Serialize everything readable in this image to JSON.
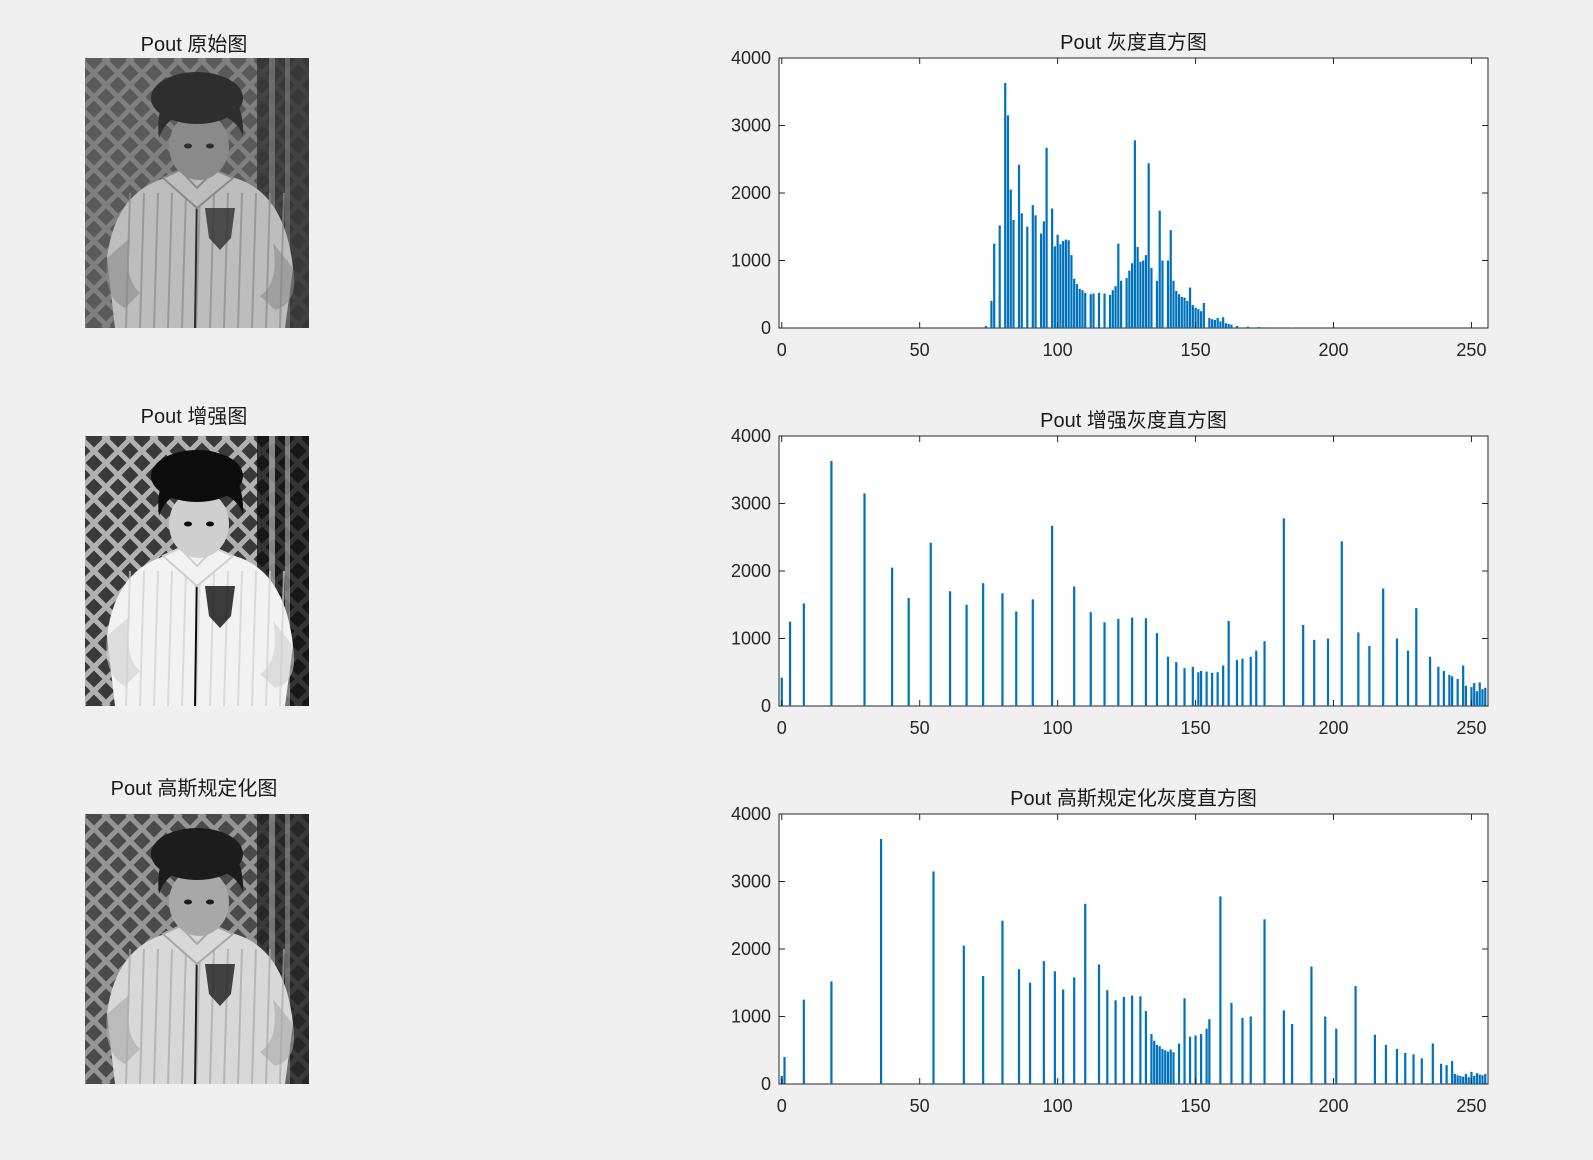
{
  "panels": [
    {
      "image_title": "Pout 原始图",
      "image_tone": {
        "bg": "#5a5a5a",
        "fg": "#8a8a8a",
        "hi": "#bdbdbd",
        "dark": "#2e2e2e"
      },
      "chart_data": {
        "type": "bar",
        "title": "Pout 灰度直方图",
        "xlim": [
          0,
          255
        ],
        "ylim": [
          0,
          4000
        ],
        "xticks": [
          0,
          50,
          100,
          150,
          200,
          250
        ],
        "yticks": [
          0,
          1000,
          2000,
          3000,
          4000
        ],
        "x": [
          74,
          76,
          77,
          79,
          81,
          82,
          83,
          84,
          86,
          87,
          89,
          91,
          92,
          94,
          95,
          96,
          98,
          99,
          100,
          101,
          102,
          103,
          104,
          105,
          106,
          107,
          108,
          109,
          110,
          112,
          113,
          115,
          117,
          119,
          120,
          121,
          122,
          123,
          125,
          126,
          127,
          128,
          129,
          130,
          131,
          132,
          133,
          134,
          136,
          137,
          138,
          140,
          141,
          142,
          143,
          144,
          145,
          146,
          147,
          148,
          149,
          150,
          151,
          152,
          153,
          155,
          156,
          157,
          158,
          159,
          160,
          161,
          162,
          163,
          165,
          169,
          173,
          177,
          185
        ],
        "values": [
          30,
          400,
          1250,
          1520,
          3630,
          3150,
          2050,
          1600,
          2420,
          1700,
          1500,
          1820,
          1670,
          1400,
          1580,
          2670,
          1770,
          1210,
          1380,
          1240,
          1290,
          1310,
          1300,
          1080,
          730,
          650,
          580,
          560,
          520,
          500,
          510,
          520,
          510,
          490,
          560,
          620,
          1250,
          700,
          740,
          850,
          960,
          2780,
          1200,
          980,
          1000,
          1080,
          2440,
          890,
          700,
          1740,
          1000,
          1000,
          1450,
          700,
          550,
          500,
          460,
          450,
          400,
          600,
          340,
          300,
          280,
          250,
          370,
          150,
          130,
          120,
          150,
          100,
          160,
          70,
          60,
          50,
          30,
          20,
          15,
          10,
          5
        ]
      }
    },
    {
      "image_title": "Pout 增强图",
      "image_tone": {
        "bg": "#3a3a3a",
        "fg": "#cfcfcf",
        "hi": "#f2f2f2",
        "dark": "#0c0c0c"
      },
      "chart_data": {
        "type": "bar",
        "title": "Pout 增强灰度直方图",
        "xlim": [
          0,
          255
        ],
        "ylim": [
          0,
          4000
        ],
        "xticks": [
          0,
          50,
          100,
          150,
          200,
          250
        ],
        "yticks": [
          0,
          1000,
          2000,
          3000,
          4000
        ],
        "x": [
          0,
          3,
          8,
          18,
          30,
          40,
          46,
          54,
          61,
          67,
          73,
          80,
          85,
          91,
          98,
          106,
          112,
          117,
          122,
          127,
          132,
          136,
          140,
          143,
          146,
          149,
          151,
          152,
          154,
          156,
          158,
          160,
          162,
          165,
          167,
          170,
          172,
          175,
          182,
          189,
          193,
          198,
          203,
          209,
          213,
          218,
          223,
          227,
          230,
          235,
          238,
          240,
          242,
          243,
          245,
          247,
          248,
          250,
          251,
          252,
          253,
          254,
          255
        ],
        "values": [
          420,
          1250,
          1520,
          3630,
          3150,
          2050,
          1600,
          2420,
          1700,
          1500,
          1820,
          1670,
          1400,
          1580,
          2670,
          1770,
          1390,
          1240,
          1290,
          1310,
          1300,
          1080,
          730,
          650,
          560,
          580,
          500,
          520,
          510,
          490,
          500,
          600,
          1260,
          680,
          700,
          730,
          820,
          960,
          2780,
          1200,
          980,
          1000,
          2440,
          1090,
          890,
          1740,
          1000,
          820,
          1450,
          730,
          580,
          520,
          460,
          440,
          400,
          600,
          300,
          280,
          340,
          220,
          350,
          250,
          270
        ]
      }
    },
    {
      "image_title": "Pout 高斯规定化图",
      "image_tone": {
        "bg": "#4a4a4a",
        "fg": "#a8a8a8",
        "hi": "#d8d8d8",
        "dark": "#1c1c1c"
      },
      "chart_data": {
        "type": "bar",
        "title": "Pout 高斯规定化灰度直方图",
        "xlim": [
          0,
          255
        ],
        "ylim": [
          0,
          4000
        ],
        "xticks": [
          0,
          50,
          100,
          150,
          200,
          250
        ],
        "yticks": [
          0,
          1000,
          2000,
          3000,
          4000
        ],
        "x": [
          0,
          1,
          8,
          18,
          36,
          55,
          66,
          73,
          80,
          86,
          90,
          95,
          99,
          102,
          106,
          110,
          115,
          118,
          121,
          124,
          127,
          130,
          132,
          134,
          135,
          136,
          137,
          138,
          139,
          140,
          141,
          142,
          144,
          146,
          148,
          150,
          152,
          154,
          155,
          159,
          163,
          167,
          170,
          175,
          182,
          185,
          192,
          197,
          201,
          208,
          215,
          219,
          223,
          226,
          229,
          232,
          236,
          239,
          241,
          243,
          244,
          245,
          246,
          247,
          248,
          249,
          250,
          251,
          252,
          253,
          254,
          255
        ],
        "values": [
          120,
          400,
          1250,
          1520,
          3630,
          3150,
          2050,
          1600,
          2420,
          1700,
          1500,
          1820,
          1670,
          1400,
          1580,
          2670,
          1770,
          1390,
          1240,
          1290,
          1310,
          1300,
          1080,
          740,
          640,
          580,
          560,
          520,
          500,
          480,
          510,
          470,
          600,
          1270,
          700,
          720,
          740,
          820,
          960,
          2780,
          1200,
          980,
          1000,
          2440,
          1090,
          890,
          1740,
          1000,
          820,
          1450,
          730,
          580,
          520,
          460,
          440,
          380,
          600,
          300,
          280,
          340,
          150,
          130,
          120,
          110,
          150,
          100,
          180,
          120,
          160,
          140,
          130,
          150
        ]
      }
    }
  ]
}
